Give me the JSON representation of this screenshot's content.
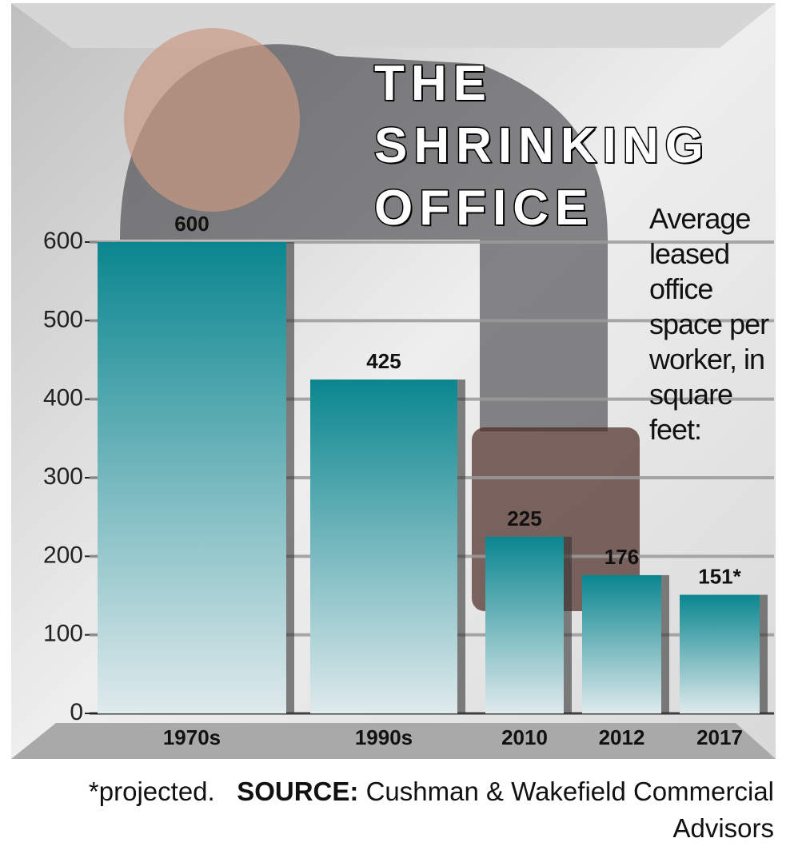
{
  "chart_data": {
    "type": "bar",
    "title": "THE SHRINKING OFFICE",
    "y_label": "Average leased office space per worker, in square feet:",
    "categories": [
      "1970s",
      "1990s",
      "2010",
      "2012",
      "2017"
    ],
    "values": [
      600,
      425,
      225,
      176,
      151
    ],
    "value_labels": [
      "600",
      "425",
      "225",
      "176",
      "151*"
    ],
    "ylim": [
      0,
      600
    ],
    "yticks": [
      0,
      100,
      200,
      300,
      400,
      500,
      600
    ],
    "grid": true,
    "note": "*projected.",
    "source_label": "SOURCE:",
    "source": "Cushman & Wakefield Commercial Advisors"
  }
}
